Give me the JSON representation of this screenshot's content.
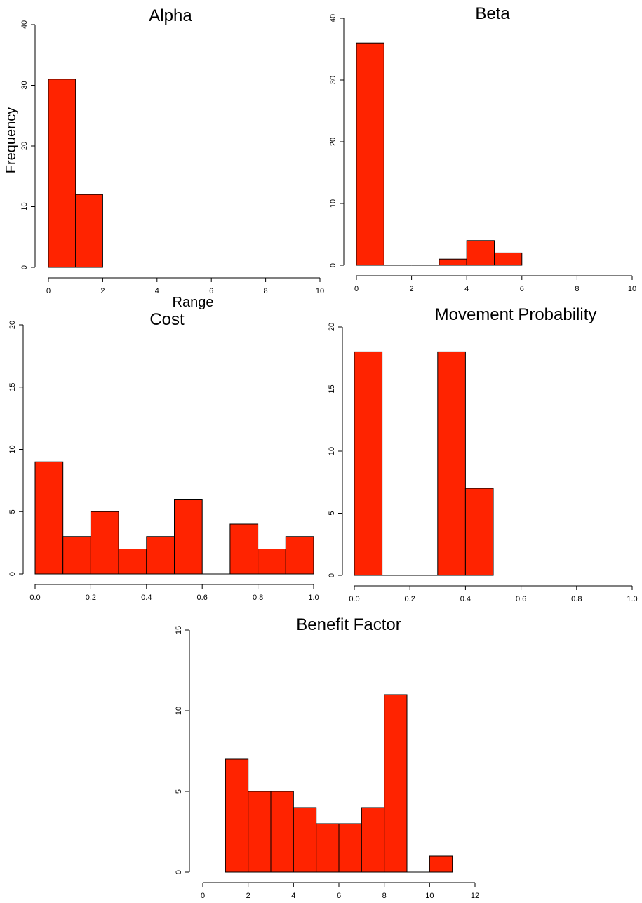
{
  "chart_data": [
    {
      "type": "bar",
      "title": "Alpha",
      "xlabel": "Range",
      "ylabel": "Frequency",
      "bin_edges": [
        0,
        1,
        2
      ],
      "values": [
        31,
        12
      ],
      "xlim": [
        0,
        10
      ],
      "ylim": [
        0,
        40
      ],
      "x_ticks": [
        0,
        2,
        4,
        6,
        8,
        10
      ],
      "x_tick_labels": [
        "0",
        "2",
        "4",
        "6",
        "8",
        "10"
      ],
      "y_ticks": [
        0,
        10,
        20,
        30,
        40
      ],
      "y_tick_labels": [
        "0",
        "10",
        "20",
        "30",
        "40"
      ],
      "bar_color": "#ff2300",
      "grid": false
    },
    {
      "type": "bar",
      "title": "Beta",
      "xlabel": "",
      "ylabel": "",
      "bin_edges": [
        0,
        1,
        2,
        3,
        4,
        5,
        6
      ],
      "values": [
        36,
        0,
        0,
        1,
        4,
        2
      ],
      "xlim": [
        0,
        10
      ],
      "ylim": [
        0,
        40
      ],
      "x_ticks": [
        0,
        2,
        4,
        6,
        8,
        10
      ],
      "x_tick_labels": [
        "0",
        "2",
        "4",
        "6",
        "8",
        "10"
      ],
      "y_ticks": [
        0,
        10,
        20,
        30,
        40
      ],
      "y_tick_labels": [
        "0",
        "10",
        "20",
        "30",
        "40"
      ],
      "bar_color": "#ff2300",
      "grid": false
    },
    {
      "type": "bar",
      "title": "Cost",
      "xlabel": "",
      "ylabel": "",
      "bin_edges": [
        0.0,
        0.1,
        0.2,
        0.3,
        0.4,
        0.5,
        0.6,
        0.7,
        0.8,
        0.9,
        1.0
      ],
      "values": [
        9,
        3,
        5,
        2,
        3,
        6,
        0,
        4,
        2,
        3
      ],
      "xlim": [
        0,
        1
      ],
      "ylim": [
        0,
        20
      ],
      "x_ticks": [
        0.0,
        0.2,
        0.4,
        0.6,
        0.8,
        1.0
      ],
      "x_tick_labels": [
        "0.0",
        "0.2",
        "0.4",
        "0.6",
        "0.8",
        "1.0"
      ],
      "y_ticks": [
        0,
        5,
        10,
        15,
        20
      ],
      "y_tick_labels": [
        "0",
        "5",
        "10",
        "15",
        "20"
      ],
      "bar_color": "#ff2300",
      "grid": false
    },
    {
      "type": "bar",
      "title": "Movement Probability",
      "xlabel": "",
      "ylabel": "",
      "bin_edges": [
        0.0,
        0.1,
        0.2,
        0.3,
        0.4,
        0.5
      ],
      "values": [
        18,
        0,
        0,
        18,
        7
      ],
      "xlim": [
        0,
        1
      ],
      "ylim": [
        0,
        20
      ],
      "x_ticks": [
        0.0,
        0.2,
        0.4,
        0.6,
        0.8,
        1.0
      ],
      "x_tick_labels": [
        "0.0",
        "0.2",
        "0.4",
        "0.6",
        "0.8",
        "1.0"
      ],
      "y_ticks": [
        0,
        5,
        10,
        15,
        20
      ],
      "y_tick_labels": [
        "0",
        "5",
        "10",
        "15",
        "20"
      ],
      "bar_color": "#ff2300",
      "grid": false
    },
    {
      "type": "bar",
      "title": "Benefit Factor",
      "xlabel": "",
      "ylabel": "",
      "bin_edges": [
        1,
        2,
        3,
        4,
        5,
        6,
        7,
        8,
        9,
        10,
        11
      ],
      "values": [
        7,
        5,
        5,
        4,
        3,
        3,
        4,
        11,
        0,
        1
      ],
      "xlim": [
        0,
        12
      ],
      "ylim": [
        0,
        15
      ],
      "x_ticks": [
        0,
        2,
        4,
        6,
        8,
        10,
        12
      ],
      "x_tick_labels": [
        "0",
        "2",
        "4",
        "6",
        "8",
        "10",
        "12"
      ],
      "y_ticks": [
        0,
        5,
        10,
        15
      ],
      "y_tick_labels": [
        "0",
        "5",
        "10",
        "15"
      ],
      "bar_color": "#ff2300",
      "grid": false
    }
  ]
}
